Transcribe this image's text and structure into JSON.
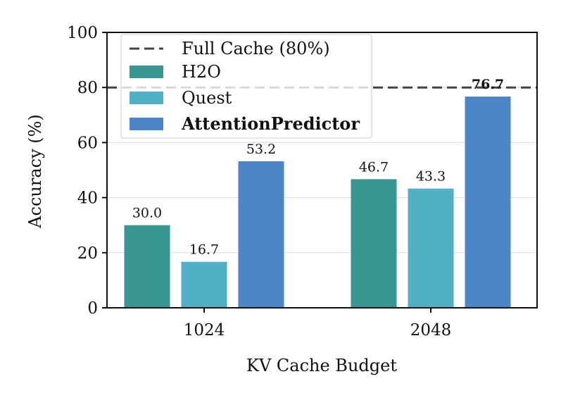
{
  "chart_data": {
    "type": "bar",
    "xlabel": "KV Cache Budget",
    "ylabel": "Accuracy (%)",
    "ylim": [
      0,
      100
    ],
    "yticks": [
      0,
      20,
      40,
      60,
      80,
      100
    ],
    "grid": "horizontal",
    "legend_position": "top-left",
    "categories": [
      "1024",
      "2048"
    ],
    "series": [
      {
        "name": "H2O",
        "color": "#3a9692",
        "values": [
          30.0,
          46.7
        ],
        "labels": [
          "30.0",
          "46.7"
        ],
        "bold": false
      },
      {
        "name": "Quest",
        "color": "#52b0c6",
        "values": [
          16.7,
          43.3
        ],
        "labels": [
          "16.7",
          "43.3"
        ],
        "bold": false
      },
      {
        "name": "AttentionPredictor",
        "color": "#4d86c6",
        "values": [
          53.2,
          76.7
        ],
        "labels": [
          "53.2",
          "76.7"
        ],
        "bold": true
      }
    ],
    "reference_line": {
      "name": "Full Cache (80%)",
      "value": 80,
      "color": "#444444",
      "style": "dashed"
    }
  }
}
